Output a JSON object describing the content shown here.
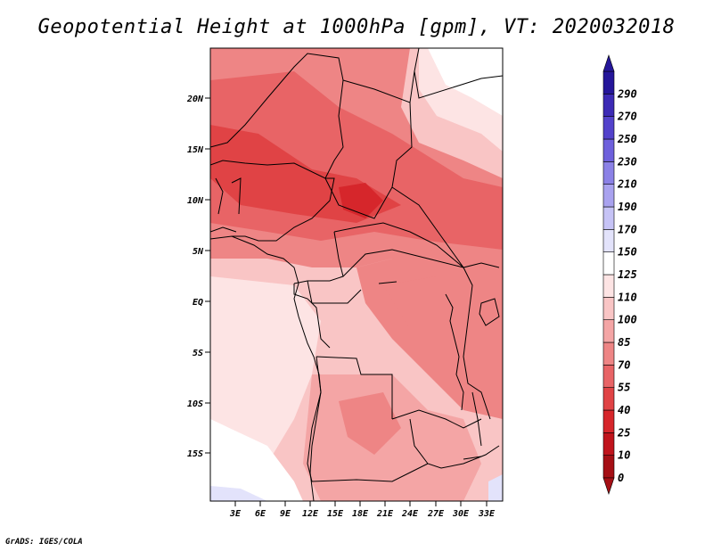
{
  "title": "Geopotential Height at 1000hPa [gpm], VT: 2020032018",
  "footer": "GrADS: IGES/COLA",
  "map": {
    "lat_labels": [
      "20N",
      "15N",
      "10N",
      "5N",
      "EQ",
      "5S",
      "10S",
      "15S"
    ],
    "lon_labels": [
      "3E",
      "6E",
      "9E",
      "12E",
      "15E",
      "18E",
      "21E",
      "24E",
      "27E",
      "30E",
      "33E"
    ]
  },
  "colorbar": {
    "levels": [
      "0",
      "10",
      "25",
      "40",
      "55",
      "70",
      "85",
      "100",
      "110",
      "125",
      "150",
      "170",
      "190",
      "210",
      "230",
      "250",
      "270",
      "290"
    ],
    "colors": [
      "#a50f15",
      "#c0141c",
      "#d6262b",
      "#e04345",
      "#e86466",
      "#ee8585",
      "#f4a5a5",
      "#f9c5c5",
      "#fde4e4",
      "#ffffff",
      "#e3e3fb",
      "#c6c3f6",
      "#a9a2ef",
      "#8b81e6",
      "#6e60dc",
      "#5342cb",
      "#3c2ab5",
      "#25169a"
    ]
  }
}
